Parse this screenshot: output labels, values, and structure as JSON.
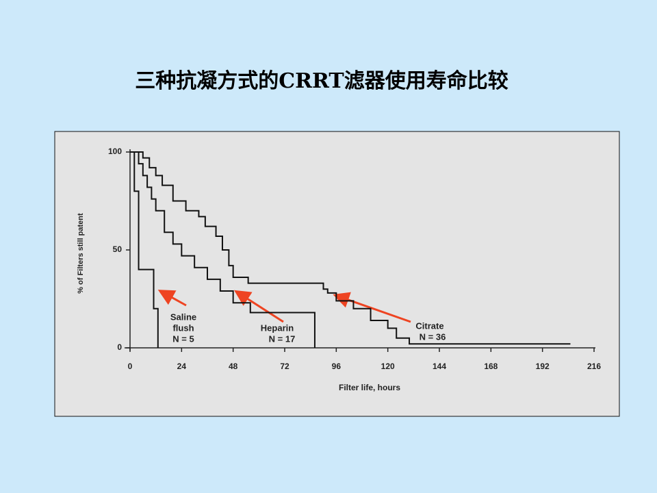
{
  "chart_data": {
    "type": "line",
    "step": true,
    "title": "三种抗凝方式的CRRT滤器使用寿命比较",
    "x_label": "Filter life, hours",
    "y_label": "% of Filters still patent",
    "xlim": [
      0,
      216
    ],
    "xticks": [
      0,
      24,
      48,
      72,
      96,
      120,
      144,
      168,
      192,
      216
    ],
    "ylim": [
      0,
      100
    ],
    "yticks": [
      0,
      50,
      100
    ],
    "series": [
      {
        "name": "Saline flush",
        "color": "#111111",
        "x": [
          0,
          2,
          4,
          11,
          13
        ],
        "values": [
          100,
          80,
          40,
          20,
          0
        ]
      },
      {
        "name": "Heparin",
        "color": "#111111",
        "x": [
          0,
          4,
          6,
          8,
          10,
          12,
          16,
          20,
          24,
          30,
          36,
          42,
          48,
          56,
          84,
          86
        ],
        "values": [
          100,
          94,
          88,
          82,
          76,
          70,
          59,
          53,
          47,
          41,
          35,
          29,
          23,
          18,
          18,
          0
        ]
      },
      {
        "name": "Citrate",
        "color": "#111111",
        "x": [
          0,
          6,
          9,
          12,
          15,
          20,
          26,
          32,
          35,
          40,
          43,
          46,
          48,
          55,
          88,
          90,
          92,
          96,
          104,
          112,
          120,
          124,
          130,
          205
        ],
        "values": [
          100,
          97,
          92,
          88,
          83,
          75,
          70,
          67,
          62,
          57,
          50,
          42,
          36,
          33,
          33,
          30,
          28,
          24,
          20,
          14,
          10,
          5,
          2,
          2
        ]
      }
    ],
    "annotations": [
      "Saline",
      "flush",
      "N = 5",
      "Heparin",
      "N = 17",
      "Citrate",
      "N = 36"
    ]
  }
}
